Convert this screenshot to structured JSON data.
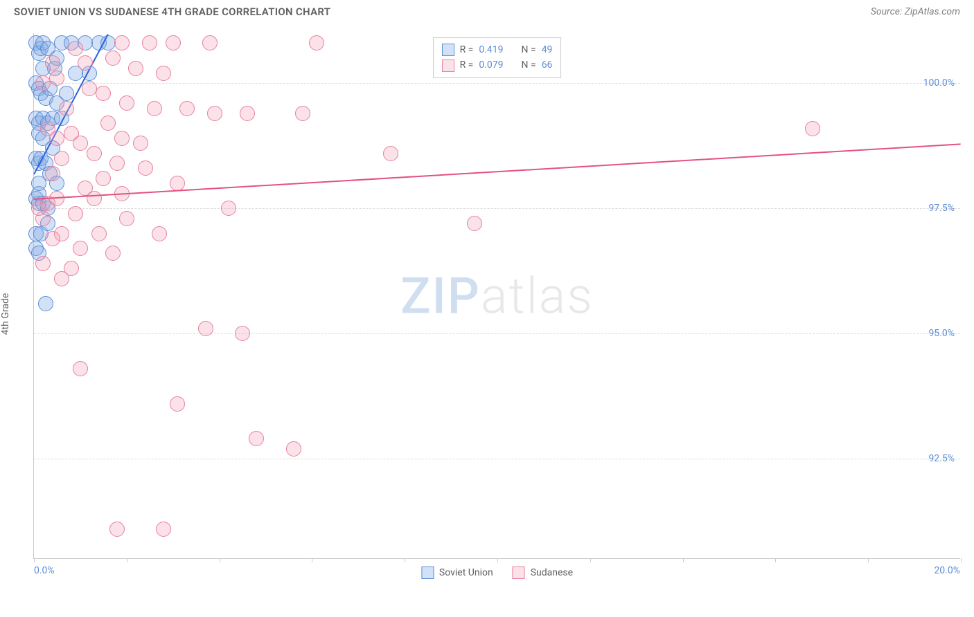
{
  "title": "SOVIET UNION VS SUDANESE 4TH GRADE CORRELATION CHART",
  "source_label": "Source: ZipAtlas.com",
  "ylabel": "4th Grade",
  "watermark_bold": "ZIP",
  "watermark_light": "atlas",
  "colors": {
    "series1_fill": "rgba(130,170,230,0.35)",
    "series1_stroke": "#5b8dd6",
    "series2_fill": "rgba(240,160,180,0.30)",
    "series2_stroke": "#e87fa0",
    "axis_label": "#5b8dd6",
    "grid": "#dddddd",
    "text": "#606060"
  },
  "legend_top": {
    "rows": [
      {
        "swatch_fill": "rgba(130,170,230,0.35)",
        "swatch_stroke": "#5b8dd6",
        "r_label": "R = ",
        "r_val": "0.419",
        "n_label": "N = ",
        "n_val": "49"
      },
      {
        "swatch_fill": "rgba(240,160,180,0.30)",
        "swatch_stroke": "#e87fa0",
        "r_label": "R = ",
        "r_val": "0.079",
        "n_label": "N = ",
        "n_val": "66"
      }
    ]
  },
  "legend_bottom": {
    "items": [
      {
        "swatch_fill": "rgba(130,170,230,0.35)",
        "swatch_stroke": "#5b8dd6",
        "label": "Soviet Union"
      },
      {
        "swatch_fill": "rgba(240,160,180,0.30)",
        "swatch_stroke": "#e87fa0",
        "label": "Sudanese"
      }
    ]
  },
  "plot": {
    "xlim": [
      0,
      20
    ],
    "ylim": [
      90.5,
      101
    ],
    "yticks": [
      92.5,
      95.0,
      97.5,
      100.0
    ],
    "ytick_labels": [
      "92.5%",
      "95.0%",
      "97.5%",
      "100.0%"
    ],
    "xticks": [
      0,
      2,
      4,
      6,
      8,
      10,
      12,
      14,
      16,
      18,
      20
    ],
    "xtick_labels": {
      "0": "0.0%",
      "20": "20.0%"
    },
    "marker_radius": 11,
    "series": [
      {
        "name": "Soviet Union",
        "fill": "rgba(130,170,230,0.35)",
        "stroke": "#5b8dd6",
        "trend": {
          "x0": 0,
          "y0": 98.2,
          "x1": 1.6,
          "y1": 101.0,
          "color": "#2962d9"
        },
        "points": [
          [
            0.05,
            100.8
          ],
          [
            0.1,
            100.6
          ],
          [
            0.15,
            100.7
          ],
          [
            0.2,
            100.8
          ],
          [
            0.3,
            100.7
          ],
          [
            0.6,
            100.8
          ],
          [
            0.8,
            100.8
          ],
          [
            1.1,
            100.8
          ],
          [
            1.4,
            100.8
          ],
          [
            1.6,
            100.8
          ],
          [
            0.05,
            100.0
          ],
          [
            0.1,
            99.9
          ],
          [
            0.15,
            99.8
          ],
          [
            0.25,
            99.7
          ],
          [
            0.35,
            99.9
          ],
          [
            0.5,
            99.6
          ],
          [
            0.05,
            99.3
          ],
          [
            0.1,
            99.2
          ],
          [
            0.2,
            99.3
          ],
          [
            0.3,
            99.2
          ],
          [
            0.4,
            99.3
          ],
          [
            0.1,
            99.0
          ],
          [
            0.2,
            98.9
          ],
          [
            0.05,
            98.5
          ],
          [
            0.1,
            98.4
          ],
          [
            0.15,
            98.5
          ],
          [
            0.25,
            98.4
          ],
          [
            0.35,
            98.2
          ],
          [
            0.05,
            97.7
          ],
          [
            0.1,
            97.6
          ],
          [
            0.2,
            97.6
          ],
          [
            0.3,
            97.5
          ],
          [
            0.1,
            97.8
          ],
          [
            0.05,
            97.0
          ],
          [
            0.15,
            97.0
          ],
          [
            0.05,
            96.7
          ],
          [
            0.1,
            96.6
          ],
          [
            0.25,
            95.6
          ],
          [
            0.6,
            99.3
          ],
          [
            0.4,
            98.7
          ],
          [
            0.5,
            98.0
          ],
          [
            0.2,
            100.3
          ],
          [
            0.7,
            99.8
          ],
          [
            0.9,
            100.2
          ],
          [
            1.2,
            100.2
          ],
          [
            0.45,
            100.3
          ],
          [
            0.1,
            98.0
          ],
          [
            0.3,
            97.2
          ],
          [
            0.5,
            100.5
          ]
        ]
      },
      {
        "name": "Sudanese",
        "fill": "rgba(240,160,180,0.30)",
        "stroke": "#e87fa0",
        "trend": {
          "x0": 0,
          "y0": 97.7,
          "x1": 20,
          "y1": 98.8,
          "color": "#e3527d"
        },
        "points": [
          [
            1.9,
            100.8
          ],
          [
            2.5,
            100.8
          ],
          [
            3.0,
            100.8
          ],
          [
            3.8,
            100.8
          ],
          [
            6.1,
            100.8
          ],
          [
            1.2,
            99.9
          ],
          [
            1.5,
            99.8
          ],
          [
            2.0,
            99.6
          ],
          [
            2.6,
            99.5
          ],
          [
            3.3,
            99.5
          ],
          [
            3.9,
            99.4
          ],
          [
            4.6,
            99.4
          ],
          [
            5.8,
            99.4
          ],
          [
            2.2,
            100.3
          ],
          [
            2.8,
            100.2
          ],
          [
            0.8,
            99.0
          ],
          [
            1.0,
            98.8
          ],
          [
            1.3,
            98.6
          ],
          [
            1.8,
            98.4
          ],
          [
            2.4,
            98.3
          ],
          [
            1.1,
            97.9
          ],
          [
            0.5,
            97.7
          ],
          [
            0.3,
            97.6
          ],
          [
            0.9,
            97.4
          ],
          [
            2.0,
            97.3
          ],
          [
            1.4,
            97.0
          ],
          [
            0.6,
            97.0
          ],
          [
            1.0,
            96.7
          ],
          [
            1.7,
            96.6
          ],
          [
            0.5,
            98.9
          ],
          [
            1.6,
            99.2
          ],
          [
            1.9,
            98.9
          ],
          [
            3.1,
            98.0
          ],
          [
            7.7,
            98.6
          ],
          [
            9.5,
            97.2
          ],
          [
            16.8,
            99.1
          ],
          [
            3.7,
            95.1
          ],
          [
            4.5,
            95.0
          ],
          [
            1.0,
            94.3
          ],
          [
            3.1,
            93.6
          ],
          [
            4.8,
            92.9
          ],
          [
            5.6,
            92.7
          ],
          [
            1.8,
            91.1
          ],
          [
            2.8,
            91.1
          ],
          [
            0.7,
            99.5
          ],
          [
            1.1,
            100.4
          ],
          [
            1.7,
            100.5
          ],
          [
            0.4,
            98.2
          ],
          [
            0.6,
            98.5
          ],
          [
            0.8,
            96.3
          ],
          [
            1.3,
            97.7
          ],
          [
            1.9,
            97.8
          ],
          [
            2.7,
            97.0
          ],
          [
            4.2,
            97.5
          ],
          [
            0.2,
            97.3
          ],
          [
            0.4,
            96.9
          ],
          [
            0.1,
            97.5
          ],
          [
            0.3,
            99.1
          ],
          [
            0.2,
            100.0
          ],
          [
            0.4,
            100.4
          ],
          [
            0.9,
            100.7
          ],
          [
            0.5,
            100.1
          ],
          [
            2.3,
            98.8
          ],
          [
            1.5,
            98.1
          ],
          [
            0.2,
            96.4
          ],
          [
            0.6,
            96.1
          ]
        ]
      }
    ]
  }
}
